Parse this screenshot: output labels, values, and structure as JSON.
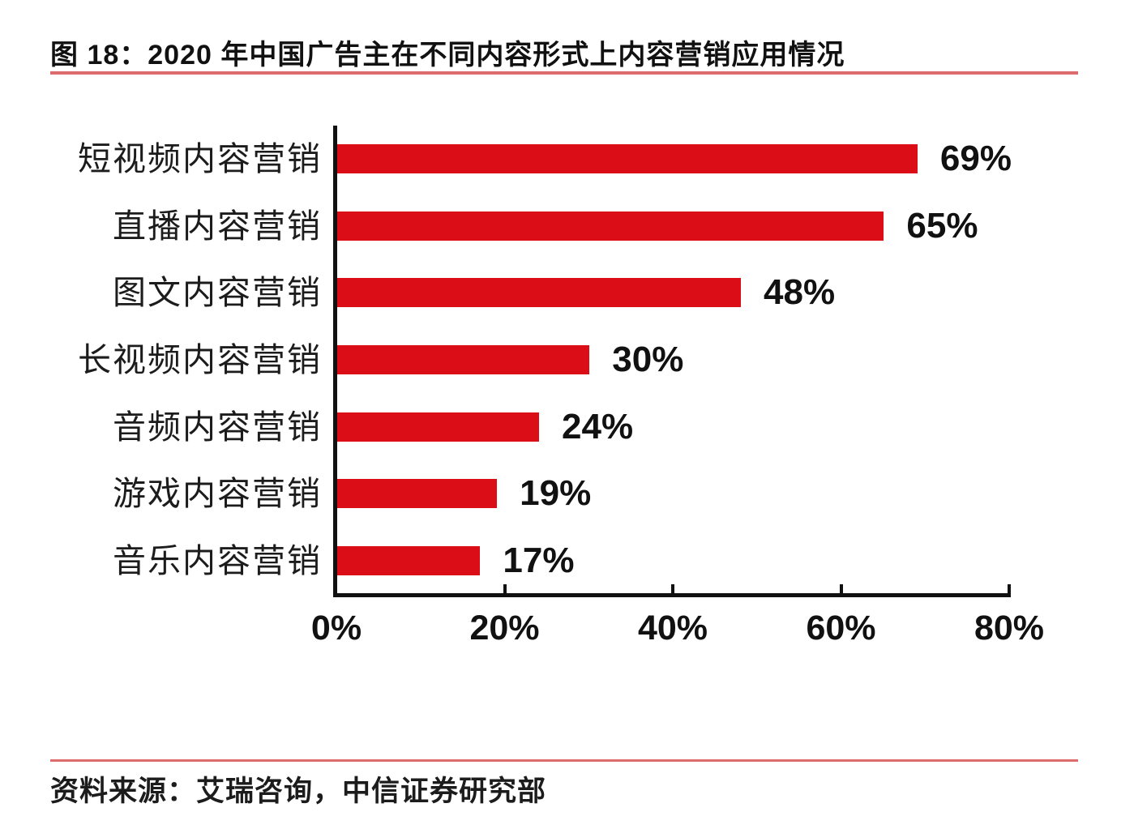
{
  "figure": {
    "title": "图 18：2020 年中国广告主在不同内容形式上内容营销应用情况",
    "source": "资料来源：艾瑞咨询，中信证券研究部"
  },
  "colors": {
    "bar": "#db0d16",
    "rule": "#dd6a6c",
    "axis": "#111111",
    "text": "#111111"
  },
  "chart_data": {
    "type": "bar",
    "orientation": "horizontal",
    "title": "图 18：2020 年中国广告主在不同内容形式上内容营销应用情况",
    "categories": [
      "短视频内容营销",
      "直播内容营销",
      "图文内容营销",
      "长视频内容营销",
      "音频内容营销",
      "游戏内容营销",
      "音乐内容营销"
    ],
    "values": [
      69,
      65,
      48,
      30,
      24,
      19,
      17
    ],
    "value_labels": [
      "69%",
      "65%",
      "48%",
      "30%",
      "24%",
      "19%",
      "17%"
    ],
    "x_tick_values": [
      0,
      20,
      40,
      60,
      80
    ],
    "x_tick_labels": [
      "0%",
      "20%",
      "40%",
      "60%",
      "80%"
    ],
    "xlim": [
      0,
      80
    ],
    "xlabel": "",
    "ylabel": "",
    "grid": false,
    "legend": false,
    "bar_color": "#db0d16",
    "source": "资料来源：艾瑞咨询，中信证券研究部"
  }
}
